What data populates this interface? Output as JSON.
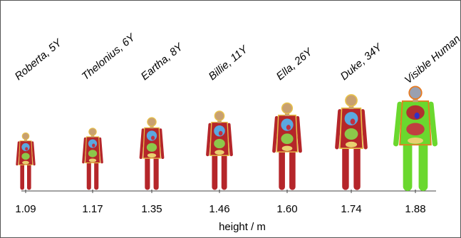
{
  "models": [
    {
      "name": "Roberta, 5Y",
      "height": "1.09"
    },
    {
      "name": "Thelonius, 6Y",
      "height": "1.17"
    },
    {
      "name": "Eartha, 8Y",
      "height": "1.35"
    },
    {
      "name": "Billie, 11Y",
      "height": "1.46"
    },
    {
      "name": "Ella, 26Y",
      "height": "1.60"
    },
    {
      "name": "Duke, 34Y",
      "height": "1.74"
    },
    {
      "name": "Visible Human",
      "height": "1.88"
    }
  ],
  "axis_label": "height / m"
}
